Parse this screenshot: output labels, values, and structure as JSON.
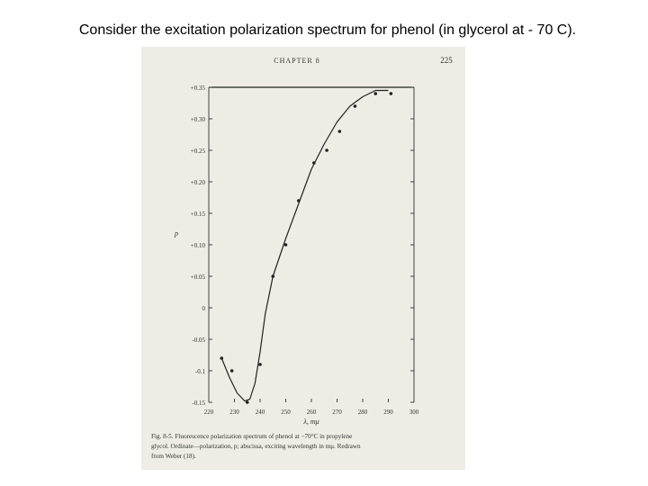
{
  "heading": "Consider the excitation polarization spectrum for phenol (in glycerol at - 70 C).",
  "chart_data": {
    "type": "scatter",
    "running_head": "CHAPTER 8",
    "page_number": "225",
    "y_label": "p",
    "x_label": "λ, mμ",
    "caption": [
      "Fig. 8-5.  Fluorescence polarization spectrum of phenol at −70°C in propylene",
      "glycol.  Ordinate—polarization, p; abscissa, exciting wavelength in mμ.  Redrawn",
      "from Weber (18)."
    ],
    "xlim": [
      220,
      300
    ],
    "ylim": [
      -0.15,
      0.35
    ],
    "xticks": [
      220,
      230,
      240,
      250,
      260,
      270,
      280,
      290,
      300
    ],
    "yticks": [
      {
        "value": 0.35,
        "label": "+0.35"
      },
      {
        "value": 0.3,
        "label": "+0.30"
      },
      {
        "value": 0.25,
        "label": "+0.25"
      },
      {
        "value": 0.2,
        "label": "+0.20"
      },
      {
        "value": 0.15,
        "label": "+0.15"
      },
      {
        "value": 0.1,
        "label": "+0.10"
      },
      {
        "value": 0.05,
        "label": "+0.05"
      },
      0,
      -0.05,
      -0.1,
      -0.15
    ],
    "color": "#222222",
    "series": [
      {
        "x": [
          225,
          229,
          235,
          240,
          245,
          250,
          255,
          261,
          266,
          271,
          277,
          285,
          291
        ],
        "values": [
          -0.08,
          -0.1,
          -0.15,
          -0.09,
          0.05,
          0.1,
          0.17,
          0.23,
          0.25,
          0.28,
          0.32,
          0.34,
          0.34
        ]
      },
      {
        "x": [
          225,
          228,
          231,
          234,
          236,
          238,
          240,
          242,
          245,
          250,
          255,
          260,
          265,
          270,
          275,
          280,
          285,
          290
        ],
        "values": [
          -0.08,
          -0.11,
          -0.135,
          -0.148,
          -0.145,
          -0.12,
          -0.07,
          -0.01,
          0.05,
          0.11,
          0.165,
          0.22,
          0.26,
          0.295,
          0.32,
          0.335,
          0.345,
          0.345
        ]
      }
    ]
  }
}
